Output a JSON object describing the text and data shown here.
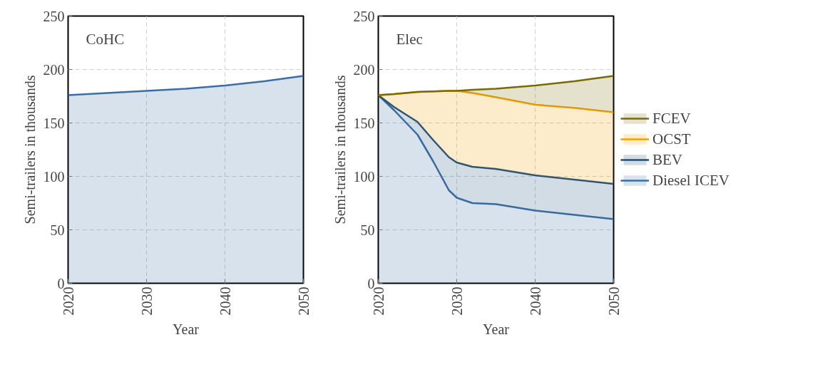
{
  "chart_data": [
    {
      "type": "area",
      "stacked": true,
      "annotations": [
        "CoHC"
      ],
      "xlabel": "Year",
      "ylabel": "Semi-trailers in thousands",
      "x": [
        2020,
        2025,
        2030,
        2035,
        2040,
        2045,
        2050
      ],
      "series": [
        {
          "color": "#3a6ea5",
          "values": [
            176,
            178,
            180,
            182,
            185,
            189,
            194
          ]
        }
      ],
      "xlim": [
        2020,
        2050
      ],
      "xticks": [
        2020,
        2030,
        2040,
        2050
      ],
      "ylim": [
        0,
        250
      ],
      "yticks": [
        0,
        50,
        100,
        150,
        200,
        250
      ],
      "grid": true,
      "legend": false
    },
    {
      "type": "area",
      "stacked": true,
      "annotations": [
        "Elec"
      ],
      "xlabel": "Year",
      "ylabel": "Semi-trailers in thousands",
      "x": [
        2020,
        2022,
        2025,
        2027,
        2029,
        2030,
        2032,
        2035,
        2040,
        2045,
        2050
      ],
      "series": [
        {
          "name": "Diesel ICEV",
          "color": "#3a6ea5",
          "values": [
            176,
            162,
            139,
            114,
            87,
            80,
            75,
            74,
            68,
            64,
            60
          ]
        },
        {
          "name": "BEV",
          "color": "#1f4e79",
          "values": [
            0,
            3,
            12,
            20,
            31,
            33,
            34,
            33,
            33,
            33,
            33
          ]
        },
        {
          "name": "OCST",
          "color": "#f0a000",
          "values": [
            0,
            12,
            28,
            45.5,
            62,
            67,
            69,
            67,
            66,
            67,
            67
          ]
        },
        {
          "name": "FCEV",
          "color": "#7a6a00",
          "values": [
            0,
            0,
            0,
            0,
            0,
            0,
            3,
            8,
            18,
            25,
            34
          ]
        }
      ],
      "xlim": [
        2020,
        2050
      ],
      "xticks": [
        2020,
        2030,
        2040,
        2050
      ],
      "ylim": [
        0,
        250
      ],
      "yticks": [
        0,
        50,
        100,
        150,
        200,
        250
      ],
      "grid": true,
      "legend": "right"
    }
  ]
}
